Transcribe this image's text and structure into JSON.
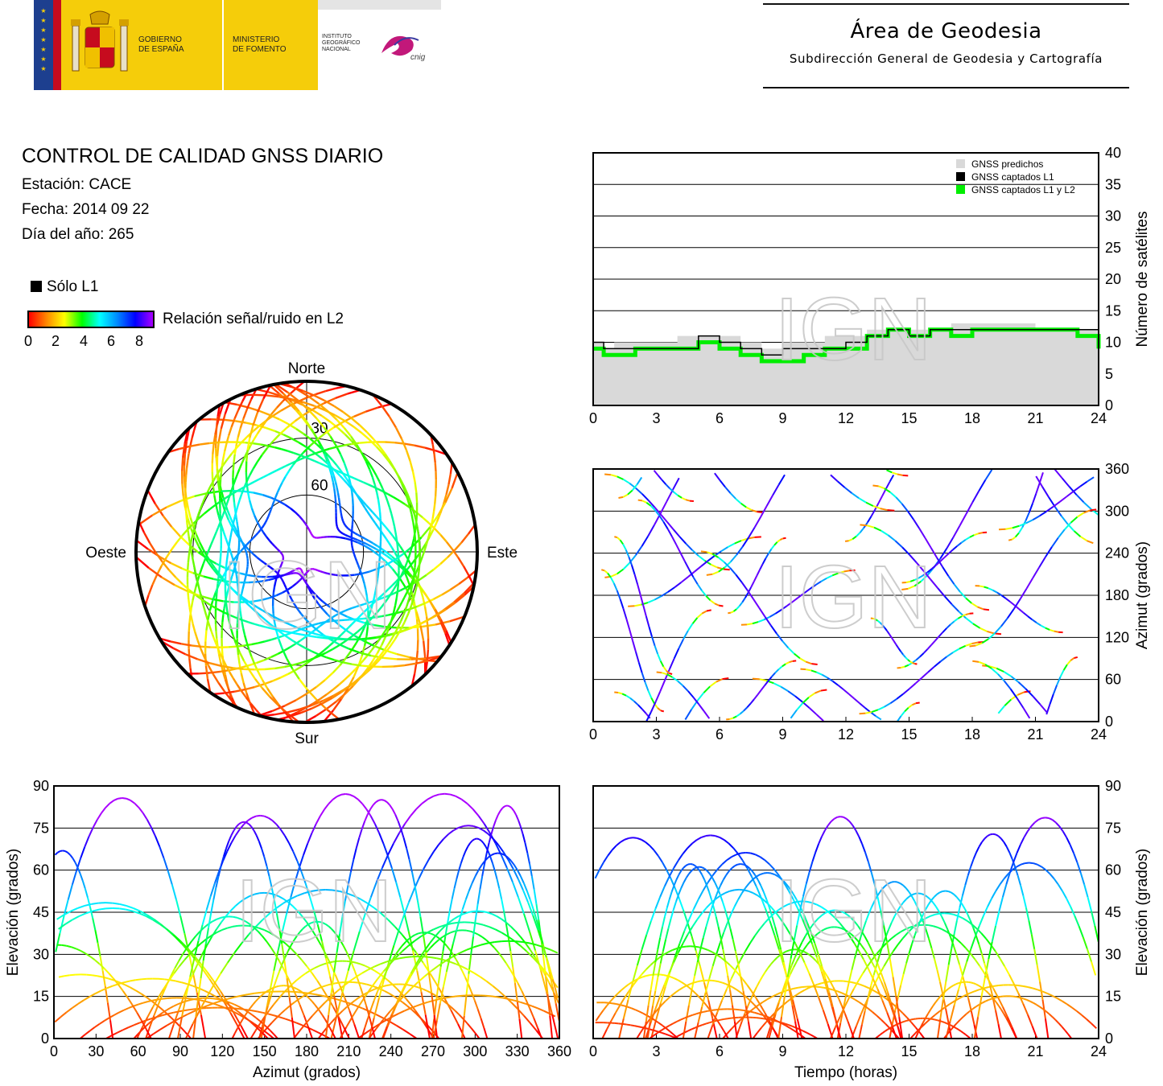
{
  "header": {
    "gobierno": [
      "GOBIERNO",
      "DE ESPAÑA"
    ],
    "ministerio": [
      "MINISTERIO",
      "DE FOMENTO"
    ],
    "instituto": [
      "INSTITUTO",
      "GEOGRÁFICO",
      "NACIONAL"
    ],
    "cnig": "cnig",
    "area_title": "Área de Geodesia",
    "area_subtitle": "Subdirección General de Geodesia y Cartografía"
  },
  "report": {
    "title": "CONTROL DE CALIDAD GNSS DIARIO",
    "station": "Estación: CACE",
    "date": "Fecha: 2014 09 22",
    "doy": "Día del año: 265"
  },
  "legend": {
    "only_l1": "Sólo L1",
    "snr_label": "Relación señal/ruido en L2",
    "colorbar_ticks": [
      "0",
      "2",
      "4",
      "6",
      "8"
    ],
    "colorbar_colors": [
      "#ff0000",
      "#ff8800",
      "#ffff00",
      "#00ff00",
      "#00ffff",
      "#0088ff",
      "#0000ff",
      "#aa00ff"
    ]
  },
  "watermark": "IGN",
  "chart_data": [
    {
      "id": "satellite-count",
      "type": "area",
      "ylabel": "Número de satélites",
      "x_ticks": [
        "0",
        "3",
        "6",
        "9",
        "12",
        "15",
        "18",
        "21",
        "24"
      ],
      "y_ticks": [
        "0",
        "5",
        "10",
        "15",
        "20",
        "25",
        "30",
        "35",
        "40"
      ],
      "xlim": [
        0,
        24
      ],
      "ylim": [
        0,
        40
      ],
      "grid": true,
      "legend_position": "top-right",
      "colors": {
        "predicted": "#d9d9d9",
        "l1": "#000000",
        "l1l2": "#00ee00"
      },
      "series": [
        {
          "name": "GNSS predichos",
          "x": [
            0,
            0.5,
            1,
            2,
            3,
            4,
            5,
            6,
            7,
            8,
            9,
            10,
            11,
            12,
            13,
            14,
            15,
            16,
            17,
            18,
            19,
            20,
            21,
            22,
            23,
            24
          ],
          "values": [
            10,
            9,
            10,
            10,
            10,
            11,
            11,
            11,
            10,
            9,
            10,
            10,
            11,
            11,
            12,
            12,
            12,
            12,
            13,
            13,
            13,
            13,
            12,
            12,
            12,
            10
          ]
        },
        {
          "name": "GNSS captados L1",
          "x": [
            0,
            0.5,
            1,
            2,
            3,
            4,
            5,
            6,
            7,
            8,
            9,
            10,
            11,
            12,
            13,
            14,
            15,
            16,
            17,
            18,
            19,
            20,
            21,
            22,
            23,
            24
          ],
          "values": [
            10,
            9,
            9,
            9,
            9,
            9,
            11,
            10,
            9,
            8,
            9,
            9,
            9,
            10,
            11,
            12,
            11,
            12,
            12,
            12,
            12,
            12,
            12,
            12,
            12,
            10
          ]
        },
        {
          "name": "GNSS captados L1 y L2",
          "x": [
            0,
            0.5,
            1,
            2,
            3,
            4,
            5,
            6,
            7,
            8,
            9,
            10,
            11,
            12,
            13,
            14,
            15,
            16,
            17,
            18,
            19,
            20,
            21,
            22,
            23,
            24
          ],
          "values": [
            9,
            8,
            8,
            9,
            9,
            9,
            10,
            9,
            8,
            7,
            7,
            8,
            9,
            9,
            11,
            12,
            11,
            12,
            11,
            12,
            12,
            12,
            12,
            12,
            11,
            9
          ]
        }
      ]
    },
    {
      "id": "sky-plot",
      "type": "scatter",
      "cardinal_labels": {
        "north": "Norte",
        "south": "Sur",
        "east": "Este",
        "west": "Oeste"
      },
      "ring_labels": [
        "30",
        "60"
      ],
      "elevation_rings": [
        30,
        60
      ]
    },
    {
      "id": "azimuth-vs-time",
      "type": "scatter",
      "ylabel": "Azimut (grados)",
      "x_ticks": [
        "0",
        "3",
        "6",
        "9",
        "12",
        "15",
        "18",
        "21",
        "24"
      ],
      "y_ticks": [
        "0",
        "60",
        "120",
        "180",
        "240",
        "300",
        "360"
      ],
      "xlim": [
        0,
        24
      ],
      "ylim": [
        0,
        360
      ],
      "grid": true
    },
    {
      "id": "elevation-vs-azimuth",
      "type": "scatter",
      "xlabel": "Azimut (grados)",
      "ylabel": "Elevación (grados)",
      "x_ticks": [
        "0",
        "30",
        "60",
        "90",
        "120",
        "150",
        "180",
        "210",
        "240",
        "270",
        "300",
        "330",
        "360"
      ],
      "y_ticks": [
        "0",
        "15",
        "30",
        "45",
        "60",
        "75",
        "90"
      ],
      "xlim": [
        0,
        360
      ],
      "ylim": [
        0,
        90
      ],
      "grid": true
    },
    {
      "id": "elevation-vs-time",
      "type": "scatter",
      "xlabel": "Tiempo (horas)",
      "ylabel": "Elevación (grados)",
      "x_ticks": [
        "0",
        "3",
        "6",
        "9",
        "12",
        "15",
        "18",
        "21",
        "24"
      ],
      "y_ticks": [
        "0",
        "15",
        "30",
        "45",
        "60",
        "75",
        "90"
      ],
      "xlim": [
        0,
        24
      ],
      "ylim": [
        0,
        90
      ],
      "grid": true
    }
  ]
}
